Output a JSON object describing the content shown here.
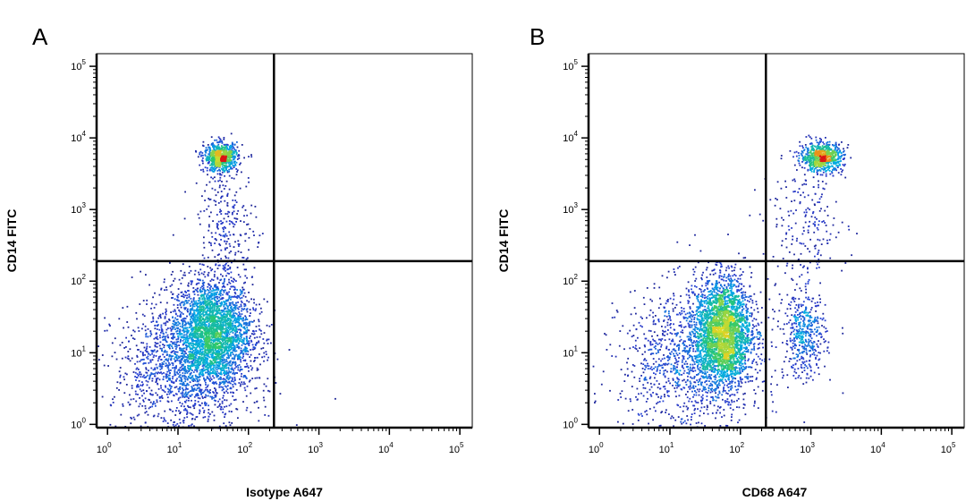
{
  "chart_data": [
    {
      "type": "scatter",
      "panel": "A",
      "xlabel": "Isotype A647",
      "ylabel": "CD14 FITC",
      "xscale": "log",
      "yscale": "log",
      "xlim": [
        0.7,
        150000
      ],
      "ylim": [
        0.9,
        150000
      ],
      "x_ticks": [
        {
          "base": "10",
          "exp": "0",
          "value": 1
        },
        {
          "base": "10",
          "exp": "1",
          "value": 10
        },
        {
          "base": "10",
          "exp": "2",
          "value": 100
        },
        {
          "base": "10",
          "exp": "3",
          "value": 1000
        },
        {
          "base": "10",
          "exp": "4",
          "value": 10000
        },
        {
          "base": "10",
          "exp": "5",
          "value": 100000
        }
      ],
      "y_ticks": [
        {
          "base": "10",
          "exp": "0",
          "value": 1
        },
        {
          "base": "10",
          "exp": "1",
          "value": 10
        },
        {
          "base": "10",
          "exp": "2",
          "value": 100
        },
        {
          "base": "10",
          "exp": "3",
          "value": 1000
        },
        {
          "base": "10",
          "exp": "4",
          "value": 10000
        },
        {
          "base": "10",
          "exp": "5",
          "value": 100000
        }
      ],
      "gate": {
        "x": 230,
        "y": 190
      },
      "populations": [
        {
          "center": [
            30,
            20
          ],
          "spread": [
            0.28,
            0.38
          ],
          "count": 2800
        },
        {
          "center": [
            12,
            6
          ],
          "spread": [
            0.5,
            0.45
          ],
          "count": 1400
        },
        {
          "center": [
            40,
            5500
          ],
          "spread": [
            0.12,
            0.1
          ],
          "count": 750
        },
        {
          "center": [
            50,
            600
          ],
          "spread": [
            0.2,
            0.4
          ],
          "count": 250
        }
      ]
    },
    {
      "type": "scatter",
      "panel": "B",
      "xlabel": "CD68 A647",
      "ylabel": "CD14 FITC",
      "xscale": "log",
      "yscale": "log",
      "xlim": [
        0.7,
        150000
      ],
      "ylim": [
        0.9,
        150000
      ],
      "x_ticks": [
        {
          "base": "10",
          "exp": "0",
          "value": 1
        },
        {
          "base": "10",
          "exp": "1",
          "value": 10
        },
        {
          "base": "10",
          "exp": "2",
          "value": 100
        },
        {
          "base": "10",
          "exp": "3",
          "value": 1000
        },
        {
          "base": "10",
          "exp": "4",
          "value": 10000
        },
        {
          "base": "10",
          "exp": "5",
          "value": 100000
        }
      ],
      "y_ticks": [
        {
          "base": "10",
          "exp": "0",
          "value": 1
        },
        {
          "base": "10",
          "exp": "1",
          "value": 10
        },
        {
          "base": "10",
          "exp": "2",
          "value": 100
        },
        {
          "base": "10",
          "exp": "3",
          "value": 1000
        },
        {
          "base": "10",
          "exp": "4",
          "value": 10000
        },
        {
          "base": "10",
          "exp": "5",
          "value": 100000
        }
      ],
      "gate": {
        "x": 230,
        "y": 190
      },
      "populations": [
        {
          "center": [
            55,
            20
          ],
          "spread": [
            0.2,
            0.38
          ],
          "count": 2800
        },
        {
          "center": [
            20,
            8
          ],
          "spread": [
            0.5,
            0.5
          ],
          "count": 1200
        },
        {
          "center": [
            1400,
            5500
          ],
          "spread": [
            0.15,
            0.1
          ],
          "count": 750
        },
        {
          "center": [
            800,
            18
          ],
          "spread": [
            0.15,
            0.3
          ],
          "count": 450
        },
        {
          "center": [
            800,
            600
          ],
          "spread": [
            0.3,
            0.4
          ],
          "count": 200
        }
      ]
    }
  ]
}
